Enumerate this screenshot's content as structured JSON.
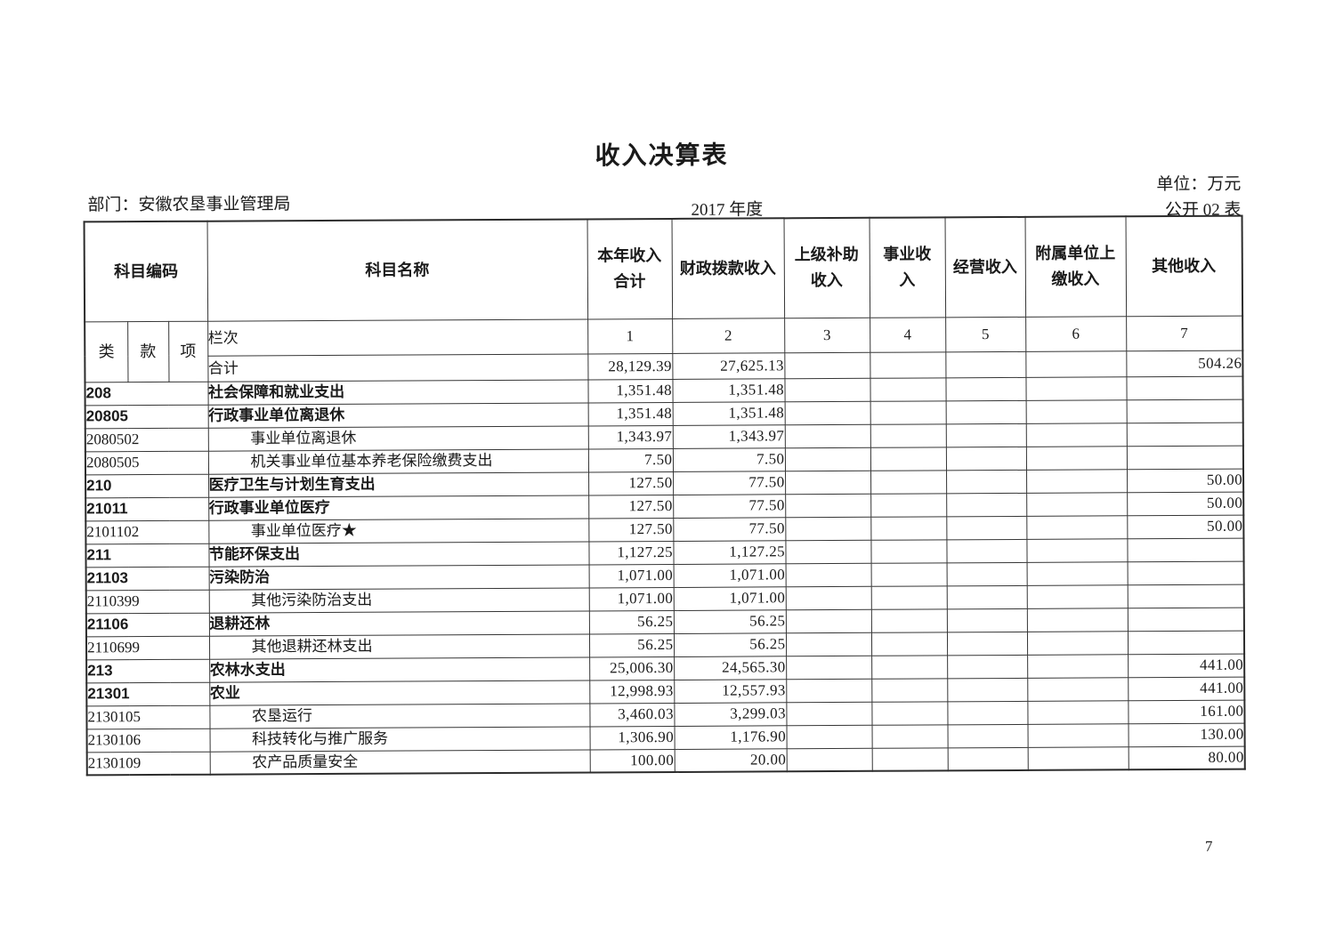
{
  "colors": {
    "ink": "#1a1a1a",
    "paper": "#ffffff",
    "line": "#363636"
  },
  "page": {
    "title": "收入决算表",
    "department": "部门：安徽农垦事业管理局",
    "year": "2017 年度",
    "unit": "单位：万元",
    "sheet": "公开 02 表",
    "page_number": "7"
  },
  "table": {
    "header": {
      "code": "科目编码",
      "name": "科目名称",
      "code_sub": [
        "类",
        "款",
        "项"
      ],
      "columns": [
        [
          "本年收入",
          "合计"
        ],
        [
          "财政拨款收入"
        ],
        [
          "上级补助",
          "收入"
        ],
        [
          "事业收",
          "入"
        ],
        [
          "经营收入"
        ],
        [
          "附属单位上",
          "缴收入"
        ],
        [
          "其他收入"
        ]
      ]
    },
    "lanci": {
      "label": "栏次",
      "numbers": [
        "1",
        "2",
        "3",
        "4",
        "5",
        "6",
        "7"
      ]
    },
    "total": {
      "label": "合计",
      "values": [
        "28,129.39",
        "27,625.13",
        "",
        "",
        "",
        "",
        "504.26"
      ]
    },
    "rows": [
      {
        "code": "208",
        "name": "社会保障和就业支出",
        "bold": true,
        "indent": false,
        "values": [
          "1,351.48",
          "1,351.48",
          "",
          "",
          "",
          "",
          ""
        ]
      },
      {
        "code": "20805",
        "name": "行政事业单位离退休",
        "bold": true,
        "indent": false,
        "values": [
          "1,351.48",
          "1,351.48",
          "",
          "",
          "",
          "",
          ""
        ]
      },
      {
        "code": "2080502",
        "name": "事业单位离退休",
        "bold": false,
        "indent": true,
        "values": [
          "1,343.97",
          "1,343.97",
          "",
          "",
          "",
          "",
          ""
        ]
      },
      {
        "code": "2080505",
        "name": "机关事业单位基本养老保险缴费支出",
        "bold": false,
        "indent": true,
        "values": [
          "7.50",
          "7.50",
          "",
          "",
          "",
          "",
          ""
        ]
      },
      {
        "code": "210",
        "name": "医疗卫生与计划生育支出",
        "bold": true,
        "indent": false,
        "values": [
          "127.50",
          "77.50",
          "",
          "",
          "",
          "",
          "50.00"
        ]
      },
      {
        "code": "21011",
        "name": "行政事业单位医疗",
        "bold": true,
        "indent": false,
        "values": [
          "127.50",
          "77.50",
          "",
          "",
          "",
          "",
          "50.00"
        ]
      },
      {
        "code": "2101102",
        "name": "事业单位医疗★",
        "bold": false,
        "indent": true,
        "values": [
          "127.50",
          "77.50",
          "",
          "",
          "",
          "",
          "50.00"
        ]
      },
      {
        "code": "211",
        "name": "节能环保支出",
        "bold": true,
        "indent": false,
        "values": [
          "1,127.25",
          "1,127.25",
          "",
          "",
          "",
          "",
          ""
        ]
      },
      {
        "code": "21103",
        "name": "污染防治",
        "bold": true,
        "indent": false,
        "values": [
          "1,071.00",
          "1,071.00",
          "",
          "",
          "",
          "",
          ""
        ]
      },
      {
        "code": "2110399",
        "name": "其他污染防治支出",
        "bold": false,
        "indent": true,
        "values": [
          "1,071.00",
          "1,071.00",
          "",
          "",
          "",
          "",
          ""
        ]
      },
      {
        "code": "21106",
        "name": "退耕还林",
        "bold": true,
        "indent": false,
        "values": [
          "56.25",
          "56.25",
          "",
          "",
          "",
          "",
          ""
        ]
      },
      {
        "code": "2110699",
        "name": "其他退耕还林支出",
        "bold": false,
        "indent": true,
        "values": [
          "56.25",
          "56.25",
          "",
          "",
          "",
          "",
          ""
        ]
      },
      {
        "code": "213",
        "name": "农林水支出",
        "bold": true,
        "indent": false,
        "values": [
          "25,006.30",
          "24,565.30",
          "",
          "",
          "",
          "",
          "441.00"
        ]
      },
      {
        "code": "21301",
        "name": "农业",
        "bold": true,
        "indent": false,
        "values": [
          "12,998.93",
          "12,557.93",
          "",
          "",
          "",
          "",
          "441.00"
        ]
      },
      {
        "code": "2130105",
        "name": "农垦运行",
        "bold": false,
        "indent": true,
        "values": [
          "3,460.03",
          "3,299.03",
          "",
          "",
          "",
          "",
          "161.00"
        ]
      },
      {
        "code": "2130106",
        "name": "科技转化与推广服务",
        "bold": false,
        "indent": true,
        "values": [
          "1,306.90",
          "1,176.90",
          "",
          "",
          "",
          "",
          "130.00"
        ]
      },
      {
        "code": "2130109",
        "name": "农产品质量安全",
        "bold": false,
        "indent": true,
        "values": [
          "100.00",
          "20.00",
          "",
          "",
          "",
          "",
          "80.00"
        ]
      }
    ]
  }
}
